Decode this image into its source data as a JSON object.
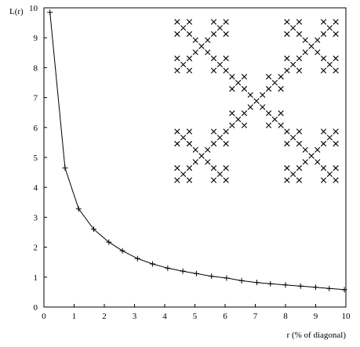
{
  "chart_data": {
    "type": "line",
    "title": "",
    "xlabel": "r (% of diagonal)",
    "ylabel": "L(r)",
    "xlim": [
      0,
      10
    ],
    "ylim": [
      0,
      10
    ],
    "x_ticks": [
      0,
      1,
      2,
      3,
      4,
      5,
      6,
      7,
      8,
      9,
      10
    ],
    "y_ticks": [
      0,
      1,
      2,
      3,
      4,
      5,
      6,
      7,
      8,
      9,
      10
    ],
    "x_tick_labels": [
      "0",
      "1",
      "2",
      "3",
      "4",
      "5",
      "6",
      "7",
      "8",
      "9",
      "10"
    ],
    "y_tick_labels": [
      "0",
      "1",
      "2",
      "3",
      "4",
      "5",
      "6",
      "7",
      "8",
      "9",
      "10"
    ],
    "grid": false,
    "legend": "none",
    "marker": "plus",
    "series": [
      {
        "x": [
          0.2,
          0.7,
          1.15,
          1.65,
          2.15,
          2.6,
          3.1,
          3.6,
          4.1,
          4.6,
          5.05,
          5.55,
          6.05,
          6.55,
          7.05,
          7.5,
          8.0,
          8.5,
          9.0,
          9.45,
          9.95
        ],
        "y": [
          9.85,
          4.65,
          3.28,
          2.6,
          2.17,
          1.88,
          1.62,
          1.44,
          1.3,
          1.2,
          1.12,
          1.03,
          0.97,
          0.88,
          0.82,
          0.78,
          0.74,
          0.7,
          0.66,
          0.62,
          0.58
        ]
      }
    ],
    "inset": {
      "type": "fractal-image",
      "description_of_shape": "Vicsek-style saltire fractal",
      "levels": 3
    }
  }
}
